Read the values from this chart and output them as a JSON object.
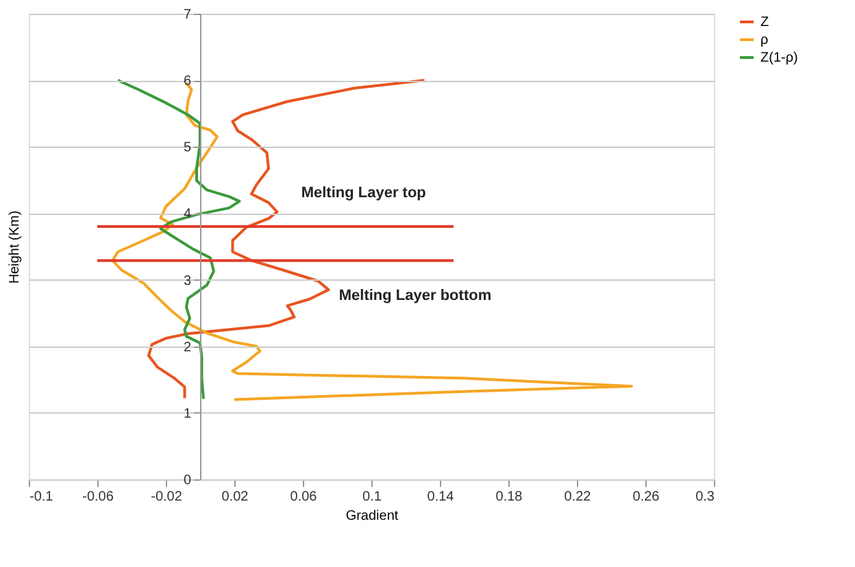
{
  "chart_data": {
    "type": "line",
    "xlabel": "Gradient",
    "ylabel": "Height (Km)",
    "xlim": [
      -0.1,
      0.3
    ],
    "xticks": [
      -0.1,
      -0.06,
      -0.02,
      0.02,
      0.06,
      0.1,
      0.14,
      0.18,
      0.22,
      0.26,
      0.3
    ],
    "ylim": [
      0,
      7
    ],
    "yticks": [
      0,
      1,
      2,
      3,
      4,
      5,
      6,
      7
    ],
    "grid": "y",
    "legend": "right",
    "marker": "none",
    "line_style": "solid",
    "series": [
      {
        "name": "Z",
        "color": "#e8541e",
        "x": [
          -0.009,
          -0.009,
          -0.015,
          -0.025,
          -0.03,
          -0.028,
          -0.02,
          -0.007,
          0.012,
          0.04,
          0.055,
          0.053,
          0.051,
          0.064,
          0.075,
          0.069,
          0.048,
          0.03,
          0.019,
          0.019,
          0.027,
          0.04,
          0.045,
          0.04,
          0.03,
          0.033,
          0.04,
          0.039,
          0.03,
          0.022,
          0.019,
          0.025,
          0.051,
          0.09,
          0.131
        ],
        "values": [
          1.22,
          1.39,
          1.52,
          1.69,
          1.86,
          2.03,
          2.12,
          2.19,
          2.24,
          2.31,
          2.44,
          2.54,
          2.61,
          2.71,
          2.85,
          2.98,
          3.15,
          3.29,
          3.42,
          3.59,
          3.79,
          3.92,
          4.02,
          4.16,
          4.29,
          4.43,
          4.67,
          4.91,
          5.11,
          5.24,
          5.38,
          5.48,
          5.68,
          5.88,
          6.0
        ]
      },
      {
        "name": "ρ",
        "color": "#f5a623",
        "x": [
          -0.008,
          -0.005,
          -0.007,
          -0.008,
          -0.003,
          0.006,
          0.01,
          0.005,
          -0.002,
          -0.009,
          -0.02,
          -0.023,
          -0.016,
          -0.021,
          -0.033,
          -0.048,
          -0.051,
          -0.046,
          -0.033,
          -0.025,
          -0.017,
          -0.009,
          0.004,
          0.019,
          0.033,
          0.035,
          0.027,
          0.019,
          0.022,
          0.154,
          0.252,
          0.154,
          0.02
        ],
        "values": [
          5.96,
          5.86,
          5.69,
          5.48,
          5.32,
          5.25,
          5.15,
          4.95,
          4.68,
          4.37,
          4.1,
          3.93,
          3.83,
          3.73,
          3.59,
          3.42,
          3.29,
          3.15,
          2.95,
          2.74,
          2.54,
          2.37,
          2.2,
          2.07,
          2.0,
          1.93,
          1.76,
          1.63,
          1.59,
          1.52,
          1.4,
          1.32,
          1.2
        ]
      },
      {
        "name": "Z(1-ρ)",
        "color": "#3a9a3a",
        "x": [
          -0.048,
          -0.036,
          -0.02,
          -0.007,
          0.0,
          0.0,
          -0.002,
          -0.002,
          0.004,
          0.017,
          0.023,
          0.017,
          -0.002,
          -0.017,
          -0.023,
          -0.017,
          -0.004,
          0.006,
          0.008,
          0.004,
          -0.007,
          -0.008,
          -0.006,
          -0.009,
          -0.008,
          0.0,
          0.001,
          0.001,
          0.002
        ],
        "values": [
          6.0,
          5.86,
          5.66,
          5.48,
          5.35,
          5.04,
          4.68,
          4.49,
          4.35,
          4.25,
          4.18,
          4.08,
          3.98,
          3.87,
          3.77,
          3.67,
          3.46,
          3.33,
          3.13,
          2.92,
          2.72,
          2.59,
          2.42,
          2.25,
          2.15,
          2.05,
          1.84,
          1.51,
          1.21
        ]
      },
      {
        "color": "#e03a2a",
        "x": [
          -0.06,
          0.148
        ],
        "values": [
          3.8,
          3.8
        ]
      },
      {
        "color": "#e03a2a",
        "x": [
          -0.06,
          0.148
        ],
        "values": [
          3.29,
          3.29
        ]
      }
    ],
    "annotations": [
      "Melting Layer top",
      "Melting Layer bottom"
    ]
  }
}
